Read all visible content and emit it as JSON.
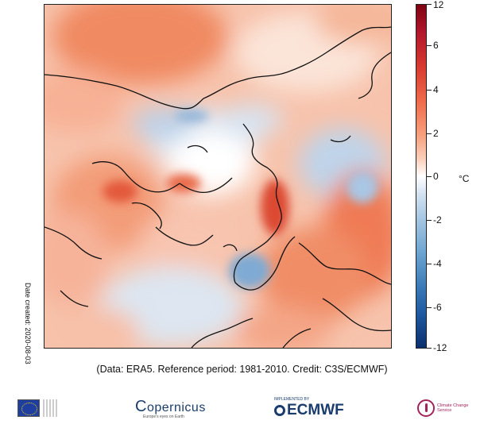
{
  "map": {
    "colorbar": {
      "unit": "°C",
      "range": [
        -12,
        12
      ],
      "ticks": [
        "12",
        "6",
        "4",
        "2",
        "0",
        "-2",
        "-4",
        "-6",
        "-12"
      ],
      "colors": {
        "max": "#7e0311",
        "warm": "#ef6a4a",
        "neutral": "#ffffff",
        "cool": "#6ea6d1",
        "min": "#0b2f6d"
      }
    },
    "date_created": "Date created: 2020-08-03",
    "caption": "(Data: ERA5.  Reference period: 1981-2010.  Credit: C3S/ECMWF)"
  },
  "logos": {
    "eu": {
      "icon": "eu-flag-icon"
    },
    "copernicus": {
      "text": "opernicus",
      "sub": "Europe's eyes on Earth",
      "icon": "copernicus-c-icon"
    },
    "ecmwf": {
      "pre": "IMPLEMENTED BY",
      "text": "ECMWF",
      "icon": "ecmwf-icon"
    },
    "c3s": {
      "text": "Climate Change Service",
      "icon": "c3s-thermometer-icon"
    }
  }
}
